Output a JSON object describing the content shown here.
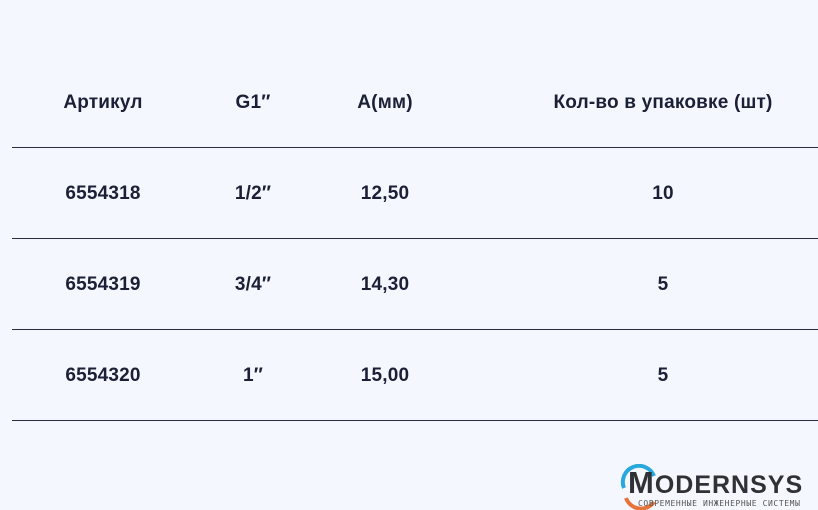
{
  "table": {
    "headers": [
      "Артикул",
      "G1″",
      "A(мм)",
      "Кол-во в упаковке (шт)"
    ],
    "rows": [
      [
        "6554318",
        "1/2″",
        "12,50",
        "10"
      ],
      [
        "6554319",
        "3/4″",
        "14,30",
        "5"
      ],
      [
        "6554320",
        "1″",
        "15,00",
        "5"
      ]
    ]
  },
  "logo": {
    "initial": "M",
    "rest": "ODERNSYS",
    "tagline": "СОВРЕМЕННЫЕ ИНЖЕНЕРНЫЕ СИСТЕМЫ",
    "arc_top_color": "#29a8e0",
    "arc_bottom_color": "#e8743b"
  },
  "colors": {
    "background": "#f4f7fd",
    "text": "#1c2036"
  }
}
